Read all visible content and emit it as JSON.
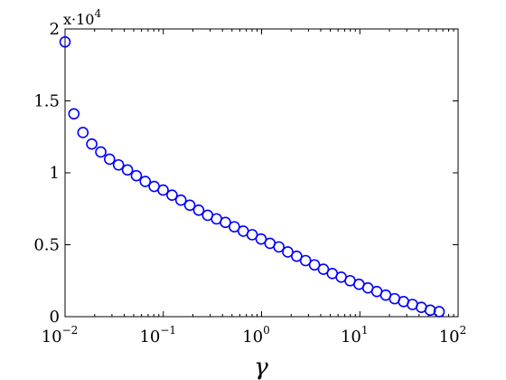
{
  "chart_data": {
    "type": "scatter",
    "title": "",
    "xlabel": "γ",
    "ylabel": "",
    "x_scale": "log",
    "xlim": [
      0.01,
      100
    ],
    "ylim": [
      0,
      20000
    ],
    "grid": false,
    "y_scale_label": {
      "prefix": "x·10",
      "exponent": "4"
    },
    "x_ticks": [
      {
        "value": 0.01,
        "base": "10",
        "exp": "−2"
      },
      {
        "value": 0.1,
        "base": "10",
        "exp": "−1"
      },
      {
        "value": 1,
        "base": "10",
        "exp": "0"
      },
      {
        "value": 10,
        "base": "10",
        "exp": "1"
      },
      {
        "value": 100,
        "base": "10",
        "exp": "2"
      }
    ],
    "y_ticks": [
      {
        "value": 0,
        "label": "0"
      },
      {
        "value": 5000,
        "label": "0.5"
      },
      {
        "value": 10000,
        "label": "1"
      },
      {
        "value": 15000,
        "label": "1.5"
      },
      {
        "value": 20000,
        "label": "2"
      }
    ],
    "marker_color": "#0000ff",
    "series": [
      {
        "x": [
          0.01,
          0.0123,
          0.0152,
          0.0187,
          0.0231,
          0.0284,
          0.035,
          0.0432,
          0.0532,
          0.0655,
          0.0807,
          0.0995,
          0.1226,
          0.151,
          0.186,
          0.2292,
          0.2824,
          0.3479,
          0.4287,
          0.5281,
          0.6507,
          0.8017,
          0.9877,
          1.217,
          1.4993,
          1.8471,
          2.2757,
          2.8038,
          3.4544,
          4.2559,
          5.2434,
          6.4601,
          7.959,
          9.8057,
          12.081,
          14.884,
          18.337,
          22.592,
          27.834,
          34.293,
          42.25,
          52.053,
          64.131
        ],
        "y": [
          19100,
          14100,
          12800,
          12000,
          11450,
          10950,
          10550,
          10200,
          9800,
          9400,
          9050,
          8800,
          8450,
          8100,
          7750,
          7400,
          7050,
          6800,
          6550,
          6250,
          5950,
          5700,
          5400,
          5100,
          4850,
          4500,
          4200,
          3900,
          3600,
          3300,
          3000,
          2750,
          2500,
          2250,
          2000,
          1750,
          1500,
          1250,
          1050,
          850,
          650,
          450,
          350
        ]
      }
    ]
  }
}
